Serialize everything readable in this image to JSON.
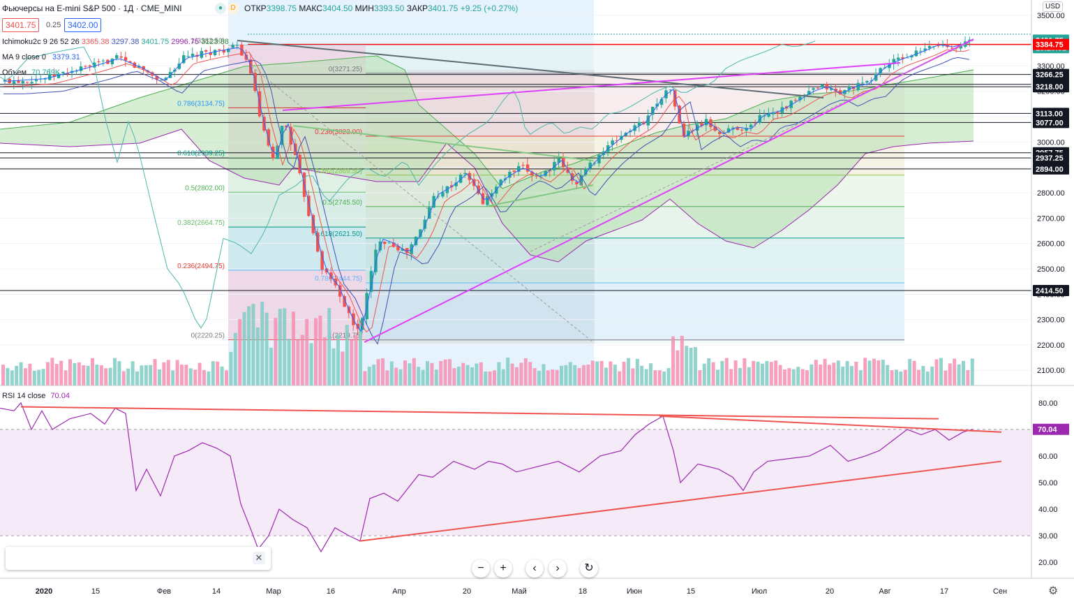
{
  "header": {
    "title": "Фьючерсы на E-mini S&P 500 · 1Д · CME_MINI",
    "badge_d": "D",
    "ohlc": [
      {
        "k": "ОТКР",
        "v": "3398.75"
      },
      {
        "k": "МАКС",
        "v": "3404.50"
      },
      {
        "k": "МИН",
        "v": "3393.50"
      },
      {
        "k": "ЗАКР",
        "v": "3401.75"
      }
    ],
    "change": "+9.25 (+0.27%)",
    "bid": "3401.75",
    "spread": "0.25",
    "ask": "3402.00",
    "currency": "USD"
  },
  "indicators": {
    "ichimoku_name": "Ichimoku2c 9 26 52 26",
    "ichimoku_vals": [
      "3365.38",
      "3297.38",
      "3401.75",
      "2996.75",
      "3123.88"
    ],
    "ma_name": "MA 9 close 0",
    "ma_val": "3379.31",
    "vol_name": "Объем",
    "vol_val": "70.769K",
    "rsi_name": "RSI 14 close",
    "rsi_val": "70.04"
  },
  "colors": {
    "up": "#26a69a",
    "down": "#ef5350",
    "accent": "#2962ff",
    "ma": "#ef5350",
    "kijun": "#3f51b5",
    "lagging": "#4db6ac",
    "cloud_up": "#b7dfb0",
    "cloud_down": "#e6c4cf",
    "rsi": "#9c27b0",
    "trend": "#e040fb"
  },
  "chart_data": {
    "type": "candlestick",
    "price_axis": {
      "ylim": [
        2040,
        3560
      ],
      "ticks": [
        2100,
        2200,
        2300,
        2400,
        2500,
        2600,
        2700,
        2800,
        2900,
        3000,
        3100,
        3200,
        3300,
        3400,
        3500
      ],
      "tick_labels": [
        "2100.00",
        "2200.00",
        "2300.00",
        "2400.00",
        "2500.00",
        "2600.00",
        "2700.00",
        "2800.00",
        "2900.00",
        "3000.00",
        "3100.00",
        "3200.00",
        "3300.00",
        "3400.00",
        "3500.00"
      ]
    },
    "price_badges": [
      {
        "v": 3401.75,
        "text": "3401.75",
        "color": "#26a69a"
      },
      {
        "v": 3372,
        "text": "15:28:51",
        "color": "#26a69a"
      },
      {
        "v": 3384.75,
        "text": "3384.75",
        "color": "#ff0000"
      },
      {
        "v": 3266.25,
        "text": "3266.25",
        "color": "#131722"
      },
      {
        "v": 3227.5,
        "text": "3227.50",
        "color": "#131722"
      },
      {
        "v": 3218,
        "text": "3218.00",
        "color": "#131722"
      },
      {
        "v": 3113,
        "text": "3113.00",
        "color": "#131722"
      },
      {
        "v": 3077,
        "text": "3077.00",
        "color": "#131722"
      },
      {
        "v": 2957.75,
        "text": "2957.75",
        "color": "#131722"
      },
      {
        "v": 2937.25,
        "text": "2937.25",
        "color": "#131722"
      },
      {
        "v": 2894,
        "text": "2894.00",
        "color": "#131722"
      },
      {
        "v": 2414.5,
        "text": "2414.50",
        "color": "#131722"
      }
    ],
    "hlines": [
      3384.75,
      3266.25,
      3227.5,
      3218,
      3113,
      3077,
      2957.75,
      2937.25,
      2894,
      2414.5
    ],
    "x_labels": [
      "2020",
      "15",
      "Фев",
      "14",
      "Мар",
      "16",
      "Апр",
      "20",
      "Май",
      "18",
      "Июн",
      "15",
      "Июл",
      "20",
      "Авг",
      "17",
      "Сен"
    ],
    "fib_left": [
      {
        "v": 3382.5,
        "text": "1(3382.50)"
      },
      {
        "v": 3134.75,
        "text": "0.786(3134.75)"
      },
      {
        "v": 2939.25,
        "text": "0.618(2939.25)"
      },
      {
        "v": 2802,
        "text": "0.5(2802.00)"
      },
      {
        "v": 2664.75,
        "text": "0.382(2664.75)"
      },
      {
        "v": 2494.75,
        "text": "0.236(2494.75)"
      },
      {
        "v": 2220.25,
        "text": "0(2220.25)"
      }
    ],
    "fib_right": [
      {
        "v": 3271.25,
        "text": "0(3271.25)"
      },
      {
        "v": 3023,
        "text": "0.236(3023.00)"
      },
      {
        "v": 2869.5,
        "text": "0.382(2869.50)"
      },
      {
        "v": 2745.5,
        "text": "0.5(2745.50)"
      },
      {
        "v": 2621.5,
        "text": "0.618(2621.50)"
      },
      {
        "v": 2444.75,
        "text": "0.786(2444.75)"
      },
      {
        "v": 2219.75,
        "text": "1(2219.75)"
      }
    ],
    "rsi": {
      "ylim": [
        14,
        86
      ],
      "ticks": [
        20,
        30,
        40,
        50,
        60,
        70,
        80
      ],
      "tick_labels": [
        "20.00",
        "30.00",
        "40.00",
        "50.00",
        "60.00",
        "70.00",
        "80.00"
      ],
      "band": [
        30,
        70
      ],
      "last": 70.04
    }
  }
}
